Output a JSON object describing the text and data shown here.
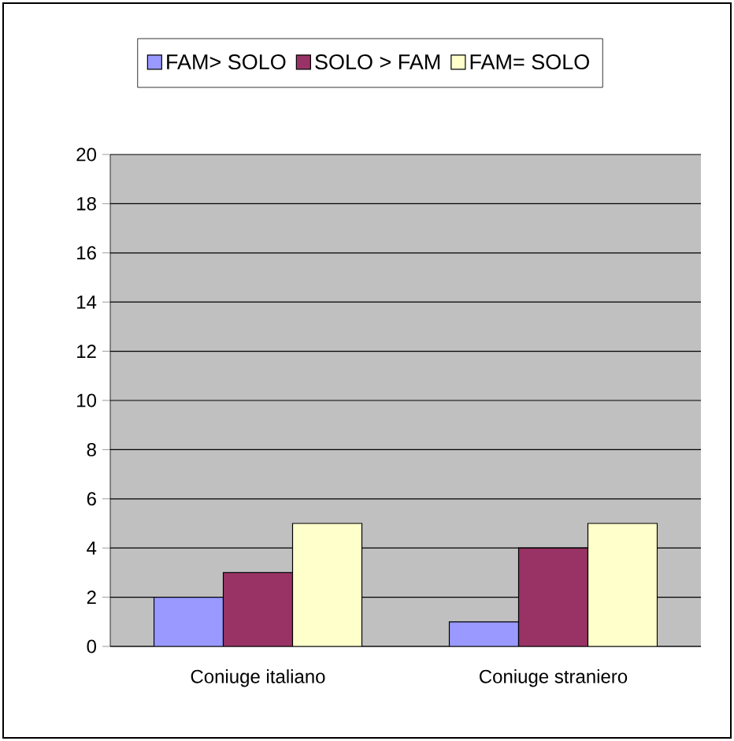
{
  "chart_data": {
    "type": "bar",
    "categories": [
      "Coniuge italiano",
      "Coniuge straniero"
    ],
    "series": [
      {
        "name": "FAM> SOLO",
        "color": "#9999ff",
        "values": [
          2,
          1
        ]
      },
      {
        "name": "SOLO > FAM",
        "color": "#993366",
        "values": [
          3,
          4
        ]
      },
      {
        "name": "FAM= SOLO",
        "color": "#ffffcc",
        "values": [
          5,
          5
        ]
      }
    ],
    "ylim": [
      0,
      20
    ],
    "yticks": [
      0,
      2,
      4,
      6,
      8,
      10,
      12,
      14,
      16,
      18,
      20
    ],
    "grid": "y",
    "legend": "top"
  }
}
